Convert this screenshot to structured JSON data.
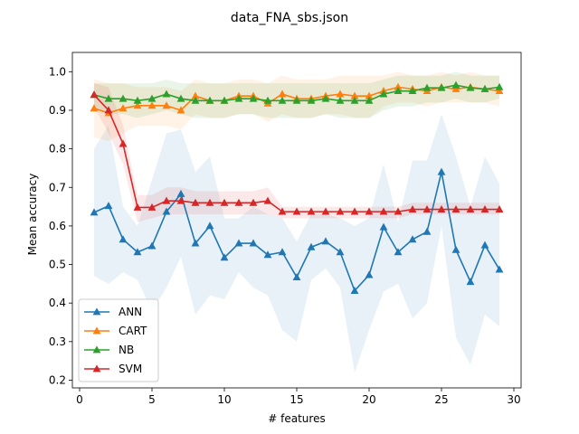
{
  "chart_data": {
    "type": "line",
    "title": "data_FNA_sbs.json",
    "xlabel": "# features",
    "ylabel": "Mean accuracy",
    "xlim": [
      -0.5,
      30.5
    ],
    "ylim": [
      0.18,
      1.05
    ],
    "xticks": [
      0,
      5,
      10,
      15,
      20,
      25,
      30
    ],
    "xtick_labels": [
      "0",
      "5",
      "10",
      "15",
      "20",
      "25",
      "30"
    ],
    "yticks": [
      0.2,
      0.3,
      0.4,
      0.5,
      0.6,
      0.7,
      0.8,
      0.9,
      1.0
    ],
    "ytick_labels": [
      "0.2",
      "0.3",
      "0.4",
      "0.5",
      "0.6",
      "0.7",
      "0.8",
      "0.9",
      "1.0"
    ],
    "grid": false,
    "legend_position": "lower-left",
    "marker": "triangle",
    "series": [
      {
        "name": "ANN",
        "color": "#1f77b4",
        "x": [
          1,
          2,
          3,
          4,
          5,
          6,
          7,
          8,
          9,
          10,
          11,
          12,
          13,
          14,
          15,
          16,
          17,
          18,
          19,
          20,
          21,
          22,
          23,
          24,
          25,
          26,
          27,
          28,
          29
        ],
        "values": [
          0.635,
          0.652,
          0.565,
          0.532,
          0.548,
          0.637,
          0.683,
          0.555,
          0.6,
          0.518,
          0.555,
          0.555,
          0.525,
          0.532,
          0.467,
          0.545,
          0.56,
          0.532,
          0.432,
          0.473,
          0.597,
          0.532,
          0.565,
          0.585,
          0.74,
          0.538,
          0.455,
          0.55,
          0.487
        ],
        "band_upper": [
          0.8,
          0.86,
          0.65,
          0.6,
          0.72,
          0.84,
          0.85,
          0.74,
          0.78,
          0.62,
          0.62,
          0.65,
          0.63,
          0.62,
          0.56,
          0.63,
          0.63,
          0.62,
          0.6,
          0.62,
          0.76,
          0.61,
          0.77,
          0.77,
          0.89,
          0.78,
          0.65,
          0.78,
          0.71
        ],
        "band_lower": [
          0.47,
          0.45,
          0.48,
          0.46,
          0.38,
          0.44,
          0.52,
          0.37,
          0.42,
          0.41,
          0.48,
          0.44,
          0.42,
          0.33,
          0.3,
          0.46,
          0.49,
          0.44,
          0.22,
          0.33,
          0.43,
          0.45,
          0.36,
          0.4,
          0.6,
          0.31,
          0.24,
          0.37,
          0.34
        ]
      },
      {
        "name": "CART",
        "color": "#ff7f0e",
        "x": [
          1,
          2,
          3,
          4,
          5,
          6,
          7,
          8,
          9,
          10,
          11,
          12,
          13,
          14,
          15,
          16,
          17,
          18,
          19,
          20,
          21,
          22,
          23,
          24,
          25,
          26,
          27,
          28,
          29
        ],
        "values": [
          0.905,
          0.893,
          0.905,
          0.912,
          0.912,
          0.912,
          0.9,
          0.937,
          0.925,
          0.925,
          0.937,
          0.937,
          0.918,
          0.942,
          0.93,
          0.93,
          0.937,
          0.942,
          0.937,
          0.937,
          0.95,
          0.96,
          0.955,
          0.95,
          0.96,
          0.955,
          0.96,
          0.955,
          0.95
        ],
        "band_upper": [
          0.98,
          0.97,
          0.97,
          0.96,
          0.96,
          0.96,
          0.95,
          0.98,
          0.97,
          0.97,
          0.98,
          0.98,
          0.97,
          0.99,
          0.98,
          0.98,
          0.98,
          0.99,
          0.99,
          0.99,
          0.99,
          1.0,
          0.99,
          0.99,
          1.0,
          0.99,
          1.0,
          0.99,
          0.99
        ],
        "band_lower": [
          0.83,
          0.82,
          0.84,
          0.86,
          0.86,
          0.86,
          0.85,
          0.89,
          0.88,
          0.88,
          0.89,
          0.89,
          0.87,
          0.89,
          0.88,
          0.88,
          0.89,
          0.89,
          0.88,
          0.88,
          0.91,
          0.92,
          0.92,
          0.91,
          0.92,
          0.92,
          0.92,
          0.92,
          0.91
        ]
      },
      {
        "name": "NB",
        "color": "#2ca02c",
        "x": [
          1,
          2,
          3,
          4,
          5,
          6,
          7,
          8,
          9,
          10,
          11,
          12,
          13,
          14,
          15,
          16,
          17,
          18,
          19,
          20,
          21,
          22,
          23,
          24,
          25,
          26,
          27,
          28,
          29
        ],
        "values": [
          0.94,
          0.93,
          0.93,
          0.925,
          0.93,
          0.942,
          0.93,
          0.925,
          0.925,
          0.925,
          0.93,
          0.93,
          0.925,
          0.925,
          0.925,
          0.925,
          0.93,
          0.925,
          0.925,
          0.925,
          0.942,
          0.95,
          0.95,
          0.958,
          0.958,
          0.965,
          0.958,
          0.955,
          0.96
        ],
        "band_upper": [
          0.97,
          0.97,
          0.97,
          0.97,
          0.97,
          0.98,
          0.97,
          0.97,
          0.97,
          0.97,
          0.97,
          0.97,
          0.97,
          0.97,
          0.97,
          0.97,
          0.97,
          0.97,
          0.97,
          0.97,
          0.98,
          0.99,
          0.99,
          0.99,
          0.99,
          1.0,
          0.99,
          0.99,
          0.99
        ],
        "band_lower": [
          0.9,
          0.89,
          0.89,
          0.88,
          0.89,
          0.9,
          0.89,
          0.88,
          0.88,
          0.88,
          0.89,
          0.89,
          0.88,
          0.88,
          0.88,
          0.88,
          0.89,
          0.88,
          0.88,
          0.88,
          0.9,
          0.91,
          0.91,
          0.92,
          0.92,
          0.93,
          0.92,
          0.92,
          0.93
        ]
      },
      {
        "name": "SVM",
        "color": "#d62728",
        "x": [
          1,
          2,
          3,
          4,
          5,
          6,
          7,
          8,
          9,
          10,
          11,
          12,
          13,
          14,
          15,
          16,
          17,
          18,
          19,
          20,
          21,
          22,
          23,
          24,
          25,
          26,
          27,
          28,
          29
        ],
        "values": [
          0.94,
          0.9,
          0.813,
          0.648,
          0.648,
          0.665,
          0.665,
          0.66,
          0.66,
          0.66,
          0.66,
          0.66,
          0.665,
          0.637,
          0.637,
          0.637,
          0.637,
          0.637,
          0.637,
          0.637,
          0.637,
          0.637,
          0.643,
          0.643,
          0.643,
          0.643,
          0.643,
          0.643,
          0.643
        ],
        "band_upper": [
          0.97,
          0.96,
          0.86,
          0.68,
          0.68,
          0.7,
          0.7,
          0.69,
          0.69,
          0.69,
          0.69,
          0.69,
          0.7,
          0.65,
          0.65,
          0.65,
          0.65,
          0.65,
          0.65,
          0.65,
          0.65,
          0.65,
          0.66,
          0.66,
          0.66,
          0.66,
          0.66,
          0.66,
          0.66
        ],
        "band_lower": [
          0.91,
          0.84,
          0.76,
          0.61,
          0.62,
          0.63,
          0.63,
          0.63,
          0.63,
          0.63,
          0.63,
          0.63,
          0.63,
          0.62,
          0.62,
          0.62,
          0.62,
          0.62,
          0.62,
          0.62,
          0.62,
          0.62,
          0.63,
          0.63,
          0.63,
          0.63,
          0.63,
          0.63,
          0.63
        ]
      }
    ]
  }
}
